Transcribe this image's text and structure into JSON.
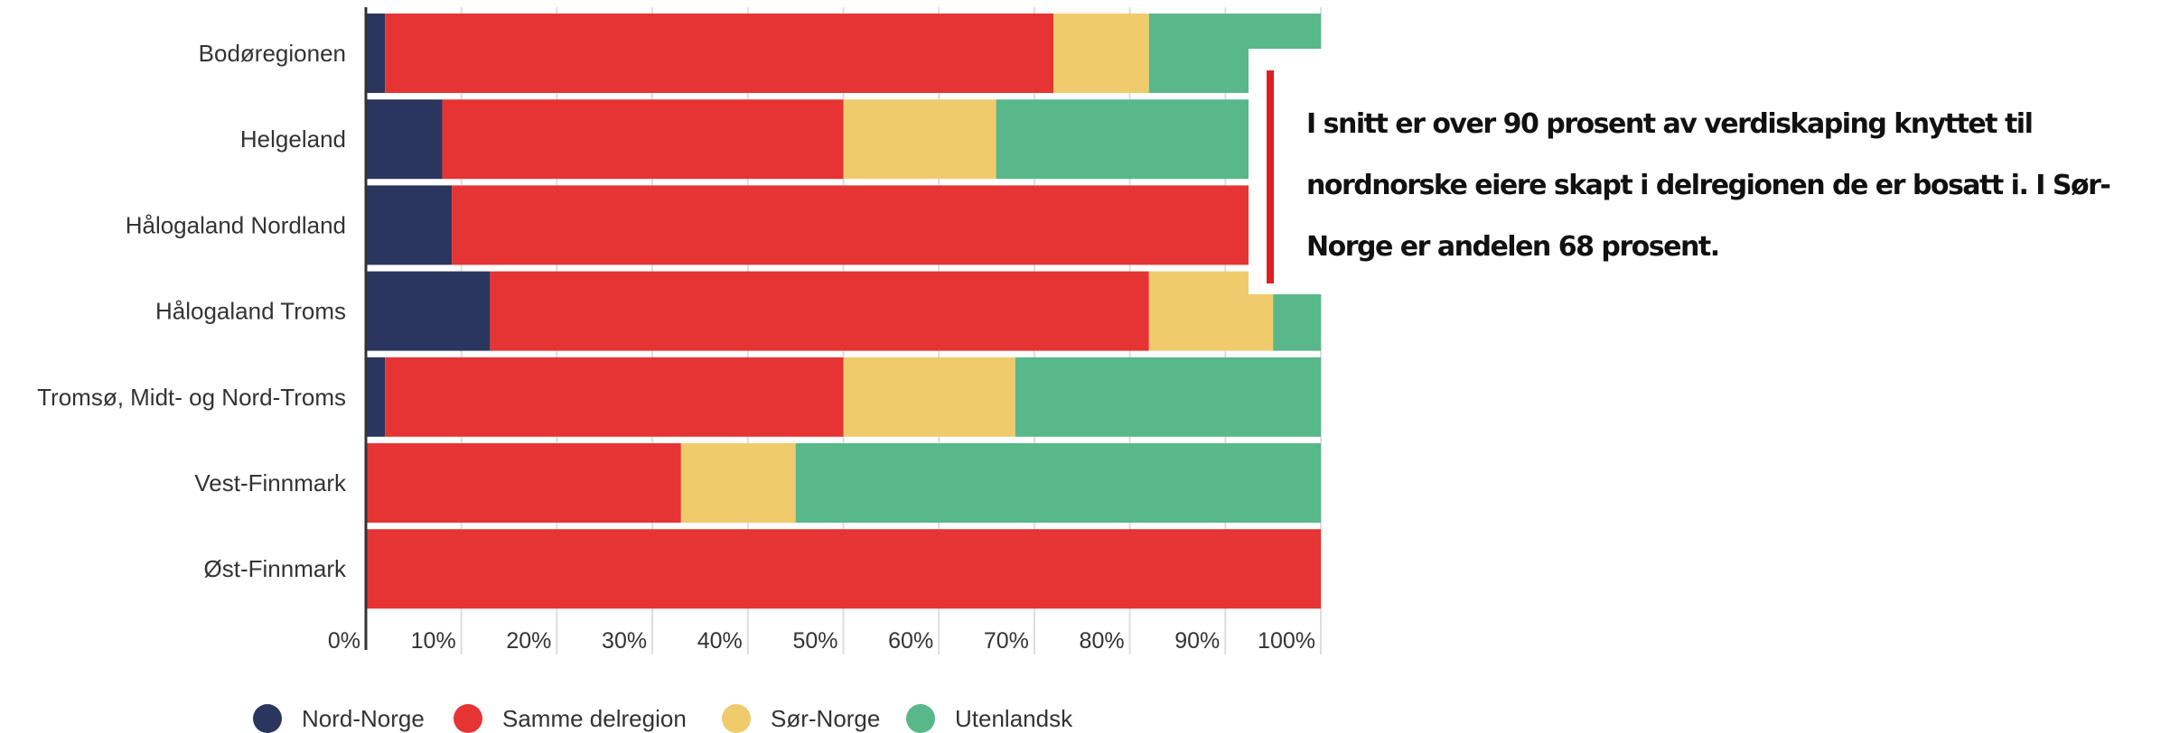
{
  "chart_data": {
    "type": "bar",
    "orientation": "horizontal",
    "stacked": true,
    "normalized": true,
    "categories": [
      "Bodøregionen",
      "Helgeland",
      "Hålogaland Nordland",
      "Hålogaland Troms",
      "Tromsø, Midt- og Nord-Troms",
      "Vest-Finnmark",
      "Øst-Finnmark"
    ],
    "series": [
      {
        "name": "Nord-Norge",
        "color": "#2b365e",
        "values": [
          2,
          8,
          9,
          13,
          2,
          0,
          0
        ]
      },
      {
        "name": "Samme delregion",
        "color": "#e63434",
        "values": [
          70,
          42,
          84,
          69,
          48,
          33,
          100
        ]
      },
      {
        "name": "Sør-Norge",
        "color": "#f0cb6c",
        "values": [
          10,
          16,
          1,
          13,
          18,
          12,
          0
        ]
      },
      {
        "name": "Utenlandsk",
        "color": "#58b88a",
        "values": [
          18,
          34,
          6,
          5,
          32,
          55,
          0
        ]
      }
    ],
    "x_ticks": [
      "0%",
      "10%",
      "20%",
      "30%",
      "40%",
      "50%",
      "60%",
      "70%",
      "80%",
      "90%",
      "100%"
    ],
    "xlim": [
      0,
      100
    ],
    "grid": true,
    "legend_position": "bottom-left",
    "title": "",
    "xlabel": "",
    "ylabel": ""
  },
  "callout": {
    "text": "I snitt er over 90 prosent av verdiskaping knyttet til nordnorske eiere skapt i delregionen de er bosatt i. I Sør-Norge er andelen 68 prosent.",
    "accent_color": "#e01f1f"
  }
}
